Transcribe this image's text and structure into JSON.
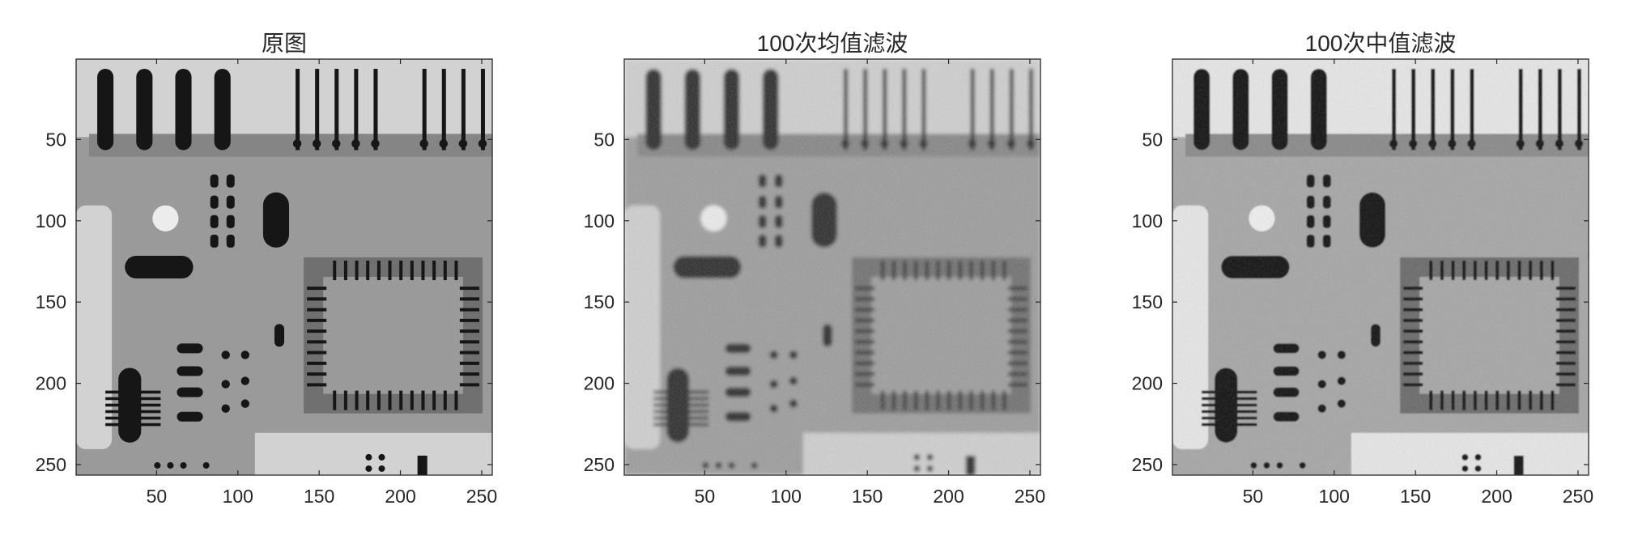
{
  "figure": {
    "panels": [
      {
        "title": "原图",
        "variant": "original",
        "x_ticks": [
          "50",
          "100",
          "150",
          "200",
          "250"
        ],
        "y_ticks": [
          "50",
          "100",
          "150",
          "200",
          "250"
        ]
      },
      {
        "title": "100次均值滤波",
        "variant": "mean",
        "x_ticks": [
          "50",
          "100",
          "150",
          "200",
          "250"
        ],
        "y_ticks": [
          "50",
          "100",
          "150",
          "200",
          "250"
        ]
      },
      {
        "title": "100次中值滤波",
        "variant": "median",
        "x_ticks": [
          "50",
          "100",
          "150",
          "200",
          "250"
        ],
        "y_ticks": [
          "50",
          "100",
          "150",
          "200",
          "250"
        ]
      }
    ]
  }
}
